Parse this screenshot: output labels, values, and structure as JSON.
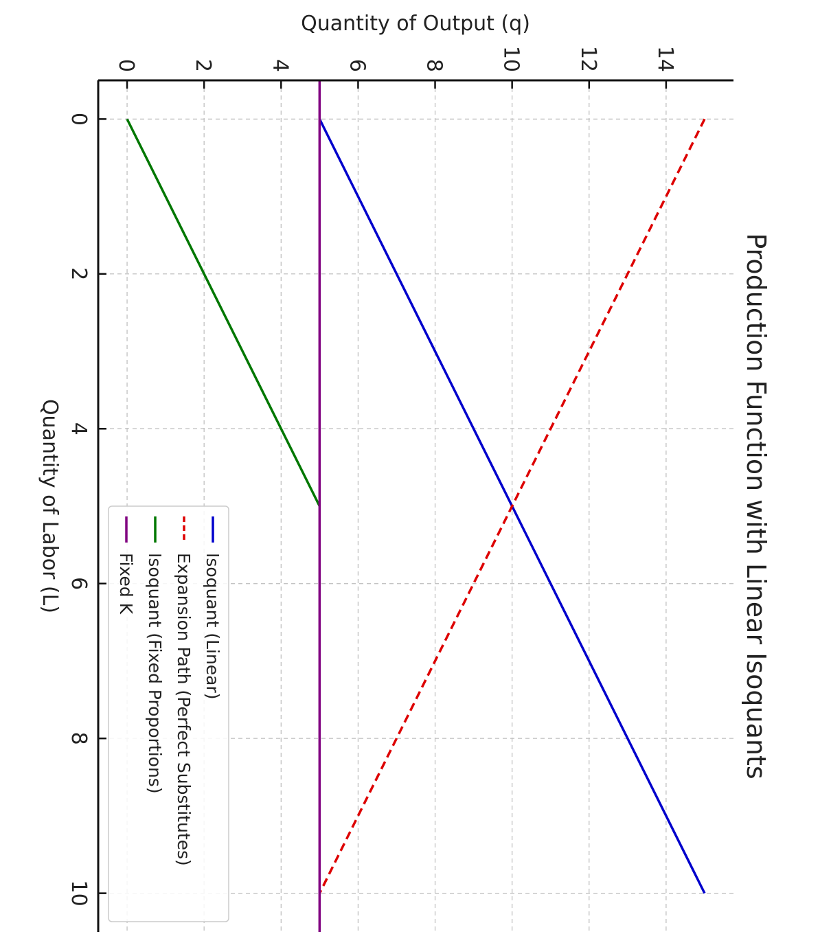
{
  "chart_data": {
    "type": "line",
    "title": "Production Function with Linear Isoquants",
    "xlabel": "Quantity of Labor (L)",
    "ylabel": "Quantity of Output (q)",
    "xlim": [
      -0.5,
      10.5
    ],
    "ylim": [
      -0.75,
      15.75
    ],
    "xticks": [
      0,
      2,
      4,
      6,
      8,
      10
    ],
    "yticks": [
      0,
      2,
      4,
      6,
      8,
      10,
      12,
      14
    ],
    "grid": true,
    "legend_position": "lower-right",
    "orientation": "image rotated 90 degrees clockwise",
    "series": [
      {
        "name": "Isoquant (Linear)",
        "color": "#0000cc",
        "style": "solid",
        "x": [
          0,
          10
        ],
        "y": [
          5,
          15
        ]
      },
      {
        "name": "Expansion Path (Perfect Substitutes)",
        "color": "#dd0000",
        "style": "dashed",
        "x": [
          0,
          10
        ],
        "y": [
          15,
          5
        ]
      },
      {
        "name": "Isoquant (Fixed Proportions)",
        "color": "#007700",
        "style": "solid",
        "x": [
          0,
          5
        ],
        "y": [
          0,
          5
        ]
      },
      {
        "name": "Fixed K",
        "color": "#800080",
        "style": "solid",
        "x": [
          -0.5,
          10.5
        ],
        "y": [
          5,
          5
        ]
      }
    ]
  }
}
